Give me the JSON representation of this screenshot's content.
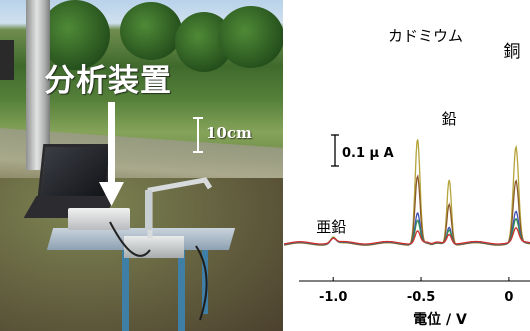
{
  "photo": {
    "device_label": "分析装置",
    "scale_label": "10cm"
  },
  "chart_data": {
    "type": "line",
    "title": "",
    "xlabel": "電位 / V",
    "ylabel": "",
    "xlim": [
      -1.28,
      0.12
    ],
    "x_ticks": [
      "-1.0",
      "-0.5",
      "0"
    ],
    "scale_bar_label": "0.1 μ A",
    "peak_labels": [
      {
        "text": "亜鉛",
        "x": -1.0
      },
      {
        "text": "カドミウム",
        "x": -0.52
      },
      {
        "text": "鉛",
        "x": -0.34
      },
      {
        "text": "銅",
        "x": 0.04
      }
    ],
    "peaks": [
      {
        "element": "Zn",
        "x": -1.0
      },
      {
        "element": "Cd",
        "x": -0.52
      },
      {
        "element": "Pb",
        "x": -0.34
      },
      {
        "element": "Cu",
        "x": 0.04
      }
    ],
    "series": [
      {
        "color": "#b5a33a",
        "heights": [
          0.022,
          0.34,
          0.21,
          0.31
        ]
      },
      {
        "color": "#8b5a2b",
        "heights": [
          0.018,
          0.22,
          0.13,
          0.2
        ]
      },
      {
        "color": "#3b4fb8",
        "heights": [
          0.016,
          0.1,
          0.055,
          0.1
        ]
      },
      {
        "color": "#2e8b57",
        "heights": [
          0.016,
          0.075,
          0.045,
          0.075
        ]
      },
      {
        "color": "#d03030",
        "heights": [
          0.014,
          0.04,
          0.03,
          0.045
        ]
      }
    ]
  }
}
